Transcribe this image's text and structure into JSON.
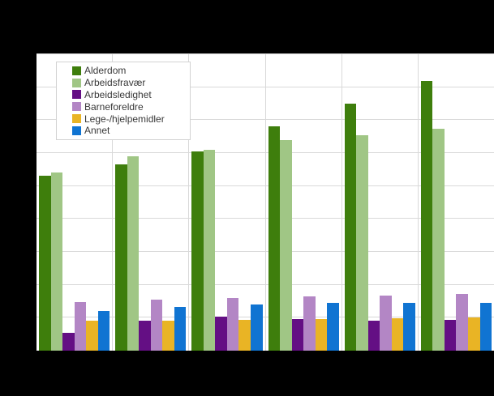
{
  "window": {
    "background_color": "#000000",
    "plot_background_color": "#ffffff",
    "gridline_color": "#d9d9d9",
    "title": ""
  },
  "chart_data": {
    "type": "bar",
    "title": "",
    "xlabel": "",
    "ylabel": "",
    "categories": [
      "",
      "",
      "",
      "",
      "",
      ""
    ],
    "series": [
      {
        "name": "Alderdom",
        "color": "#3e7e0c",
        "values": [
          53,
          56.5,
          60.5,
          68,
          75,
          82
        ]
      },
      {
        "name": "Arbeidsfravær",
        "color": "#a0c685",
        "values": [
          54,
          59,
          61,
          64,
          65.5,
          67.5
        ]
      },
      {
        "name": "Arbeidsledighet",
        "color": "#640f84",
        "values": [
          5.5,
          9,
          10.3,
          9.5,
          9.1,
          9.3
        ]
      },
      {
        "name": "Barneforeldre",
        "color": "#b386c5",
        "values": [
          14.8,
          15.4,
          15.9,
          16.4,
          16.8,
          17.2
        ]
      },
      {
        "name": "Lege-/hjelpemidler",
        "color": "#e9b425",
        "values": [
          9.1,
          9.2,
          9.4,
          9.6,
          9.8,
          10
        ]
      },
      {
        "name": "Annet",
        "color": "#1074d2",
        "values": [
          12,
          13.2,
          14.1,
          14.4,
          14.5,
          14.6
        ]
      }
    ],
    "ylim": [
      0,
      90
    ],
    "grid_step": 10,
    "grid": "horizontal lines every step, vertical separators between categories",
    "axis_tick_labels_visible": false,
    "legend_position": "top-left inside plot",
    "legend_entries": [
      "Alderdom",
      "Arbeidsfravær",
      "Arbeidsledighet",
      "Barneforeldre",
      "Lege-/hjelpemidler",
      "Annet"
    ]
  }
}
